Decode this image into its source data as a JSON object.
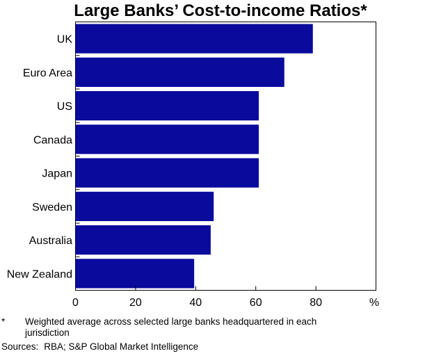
{
  "chart_data": {
    "type": "bar",
    "orientation": "horizontal",
    "title": "Large Banks’ Cost-to-income Ratios*",
    "categories": [
      "UK",
      "Euro Area",
      "US",
      "Canada",
      "Japan",
      "Sweden",
      "Australia",
      "New Zealand"
    ],
    "values": [
      79,
      69.5,
      61,
      61,
      61,
      46,
      45,
      39.5
    ],
    "x_ticks": [
      "0",
      "20",
      "40",
      "60",
      "80"
    ],
    "x_unit": "%",
    "xlim": [
      0,
      100
    ],
    "bar_color": "#0a0a9c",
    "grid": false,
    "legend": "none"
  },
  "footnote": {
    "marker": "*",
    "text": "Weighted average across selected large banks headquartered in each jurisdiction"
  },
  "sources": {
    "label": "Sources:",
    "text": "RBA; S&P Global Market Intelligence"
  }
}
